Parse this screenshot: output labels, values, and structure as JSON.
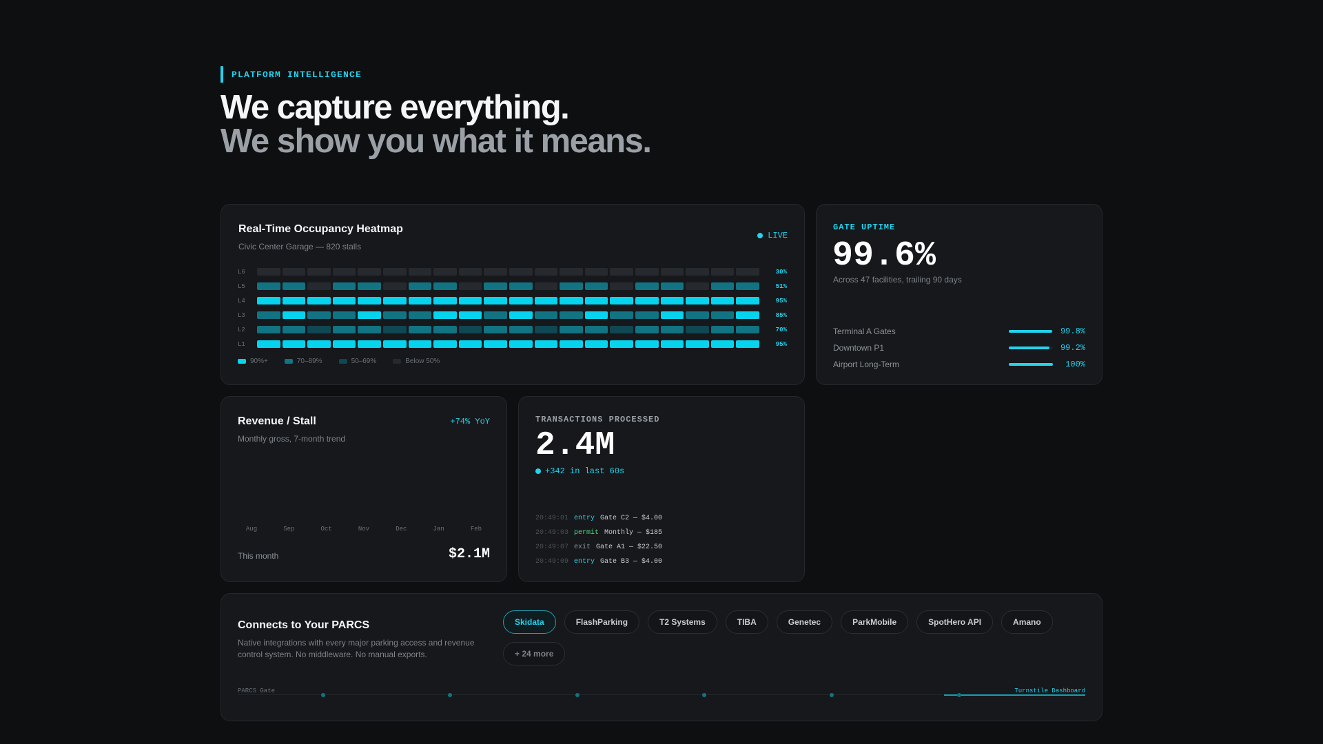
{
  "header": {
    "eyebrow": "PLATFORM INTELLIGENCE",
    "headline_line1": "We capture everything.",
    "headline_line2": "We show you what it means."
  },
  "heatmap": {
    "title": "Real-Time Occupancy Heatmap",
    "subtitle": "Civic Center Garage — 820 stalls",
    "live_label": "LIVE",
    "rows": [
      {
        "label": "L6",
        "pct": "30%",
        "cells": [
          "off",
          "off",
          "off",
          "off",
          "off",
          "off",
          "off",
          "off",
          "off",
          "off",
          "off",
          "off",
          "off",
          "off",
          "off",
          "off",
          "off",
          "off",
          "off",
          "off"
        ]
      },
      {
        "label": "L5",
        "pct": "51%",
        "cells": [
          "mid",
          "mid",
          "off",
          "mid",
          "mid",
          "off",
          "mid",
          "mid",
          "off",
          "mid",
          "mid",
          "off",
          "mid",
          "mid",
          "off",
          "mid",
          "mid",
          "off",
          "mid",
          "mid"
        ]
      },
      {
        "label": "L4",
        "pct": "95%",
        "cells": [
          "hi",
          "hi",
          "hi",
          "hi",
          "hi",
          "hi",
          "hi",
          "hi",
          "hi",
          "hi",
          "hi",
          "hi",
          "hi",
          "hi",
          "hi",
          "hi",
          "hi",
          "hi",
          "hi",
          "hi"
        ]
      },
      {
        "label": "L3",
        "pct": "85%",
        "cells": [
          "mid",
          "hi",
          "mid",
          "mid",
          "hi",
          "mid",
          "mid",
          "hi",
          "hi",
          "mid",
          "hi",
          "mid",
          "mid",
          "hi",
          "mid",
          "mid",
          "hi",
          "mid",
          "mid",
          "hi"
        ]
      },
      {
        "label": "L2",
        "pct": "70%",
        "cells": [
          "mid",
          "mid",
          "low",
          "mid",
          "mid",
          "low",
          "mid",
          "mid",
          "low",
          "mid",
          "mid",
          "low",
          "mid",
          "mid",
          "low",
          "mid",
          "mid",
          "low",
          "mid",
          "mid"
        ]
      },
      {
        "label": "L1",
        "pct": "95%",
        "cells": [
          "hi",
          "hi",
          "hi",
          "hi",
          "hi",
          "hi",
          "hi",
          "hi",
          "hi",
          "hi",
          "hi",
          "hi",
          "hi",
          "hi",
          "hi",
          "hi",
          "hi",
          "hi",
          "hi",
          "hi"
        ]
      }
    ],
    "legend": [
      {
        "label": "90%+",
        "color": "#06d4ee"
      },
      {
        "label": "70–89%",
        "color": "#127382"
      },
      {
        "label": "50–69%",
        "color": "#0f4752"
      },
      {
        "label": "Below 50%",
        "color": "#262a2f"
      }
    ]
  },
  "uptime": {
    "eyebrow": "GATE UPTIME",
    "value": "99.6%",
    "description": "Across 47 facilities, trailing 90 days",
    "rows": [
      {
        "name": "Terminal A Gates",
        "value": "99.8%",
        "level": 0.998
      },
      {
        "name": "Downtown P1",
        "value": "99.2%",
        "level": 0.992
      },
      {
        "name": "Airport Long-Term",
        "value": "100%",
        "level": 1.0
      }
    ]
  },
  "revenue": {
    "title": "Revenue / Stall",
    "subtitle": "Monthly gross, 7-month trend",
    "yoy": "+74% YoY",
    "months": [
      "Aug",
      "Sep",
      "Oct",
      "Nov",
      "Dec",
      "Jan",
      "Feb"
    ],
    "this_month_label": "This month",
    "this_month_value": "$2.1M"
  },
  "transactions": {
    "eyebrow": "TRANSACTIONS PROCESSED",
    "value": "2.4M",
    "delta": "+342 in last 60s",
    "log": [
      {
        "time": "20:49:01",
        "kind": "entry",
        "text": "Gate C2 — $4.00"
      },
      {
        "time": "20:49:03",
        "kind": "permit",
        "text": "Monthly — $185"
      },
      {
        "time": "20:49:07",
        "kind": "exit",
        "text": "Gate A1 — $22.50"
      },
      {
        "time": "20:49:09",
        "kind": "entry",
        "text": "Gate B3 — $4.00"
      }
    ]
  },
  "integrations": {
    "title": "Connects to Your PARCS",
    "description": "Native integrations with every major parking access and revenue control system. No middleware. No manual exports.",
    "chips": [
      "Skidata",
      "FlashParking",
      "T2 Systems",
      "TIBA",
      "Genetec",
      "ParkMobile",
      "SpotHero API",
      "Amano"
    ],
    "active_chip": "Skidata",
    "more_chip": "+ 24 more",
    "flow_source": "PARCS Gate",
    "flow_target": "Turnstile Dashboard"
  },
  "colors": {
    "accent": "#22d3ee",
    "permit": "#4ade80",
    "background": "#0e0f11",
    "card": "#16181b"
  }
}
